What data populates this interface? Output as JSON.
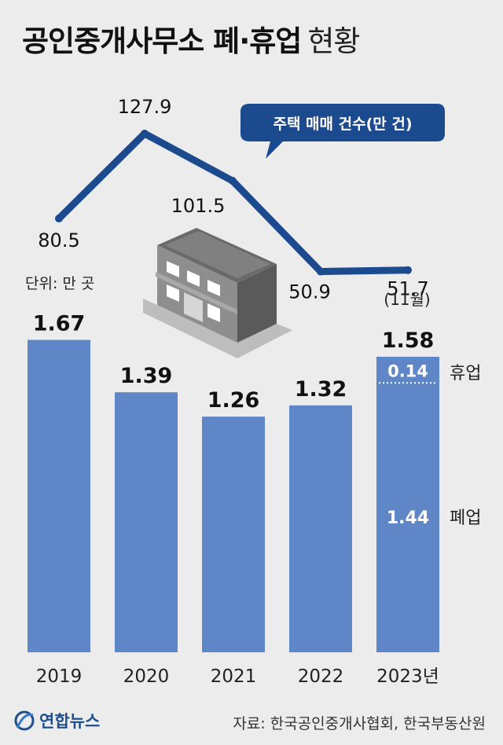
{
  "title": {
    "main": "공인중개사무소 폐·휴업",
    "sub": "현황"
  },
  "unit_label": "단위: 만 곳",
  "legend_label": "주택 매매 건수(만 건)",
  "line_note": "(11월)",
  "suspended_label": "휴업",
  "closed_label": "폐업",
  "source": "자료: 한국공인중개사협회, 한국부동산원",
  "logo_text": "연합뉴스",
  "colors": {
    "bar": "#5f86c6",
    "line": "#1c4a8e",
    "background": "#ececec"
  },
  "chart_data": {
    "type": "bar",
    "categories": [
      "2019",
      "2020",
      "2021",
      "2022",
      "2023년"
    ],
    "bar_totals": [
      "1.67",
      "1.39",
      "1.26",
      "1.32",
      "1.58"
    ],
    "bar_series": [
      {
        "name": "폐업",
        "values": [
          null,
          null,
          null,
          null,
          1.44
        ]
      },
      {
        "name": "휴업",
        "values": [
          null,
          null,
          null,
          null,
          0.14
        ]
      }
    ],
    "segment_labels": {
      "휴업": "0.14",
      "폐업": "1.44"
    },
    "line_series": {
      "name": "주택 매매 건수(만 건)",
      "values": [
        80.5,
        127.9,
        101.5,
        50.9,
        51.7
      ],
      "labels": [
        "80.5",
        "127.9",
        "101.5",
        "50.9",
        "51.7"
      ]
    },
    "y_unit": "만 곳"
  }
}
